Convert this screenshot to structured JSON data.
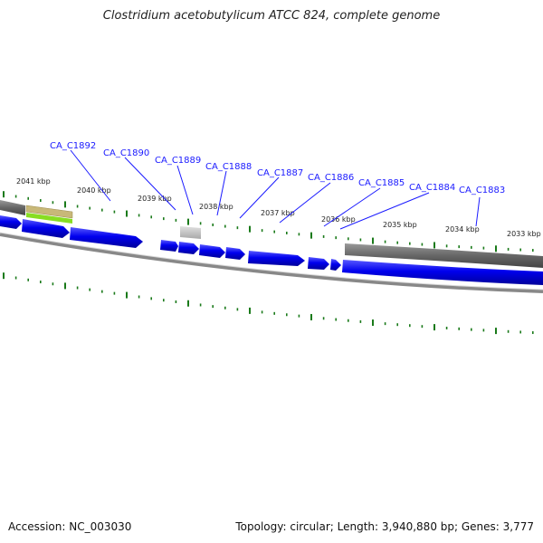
{
  "title": "Clostridium acetobutylicum ATCC 824, complete genome",
  "footer": {
    "accession": "Accession: NC_003030",
    "summary": "Topology: circular; Length: 3,940,880 bp; Genes: 3,777"
  },
  "scale_labels": [
    "2041 kbp",
    "2040 kbp",
    "2039 kbp",
    "2038 kbp",
    "2037 kbp",
    "2036 kbp",
    "2035 kbp",
    "2034 kbp",
    "2033 kbp"
  ],
  "gene_labels": [
    "CA_C1892",
    "CA_C1890",
    "CA_C1889",
    "CA_C1888",
    "CA_C1887",
    "CA_C1886",
    "CA_C1885",
    "CA_C1884",
    "CA_C1883"
  ],
  "colors": {
    "gene_label": "#1a1aff",
    "cds": "#0000ee",
    "gene_gray": "#666666",
    "gene_lightgray": "#c0c0c0",
    "gene_tan": "#c8b878",
    "gene_green": "#88dd22",
    "tick": "#1a7a1a",
    "backbone": "#888888"
  }
}
